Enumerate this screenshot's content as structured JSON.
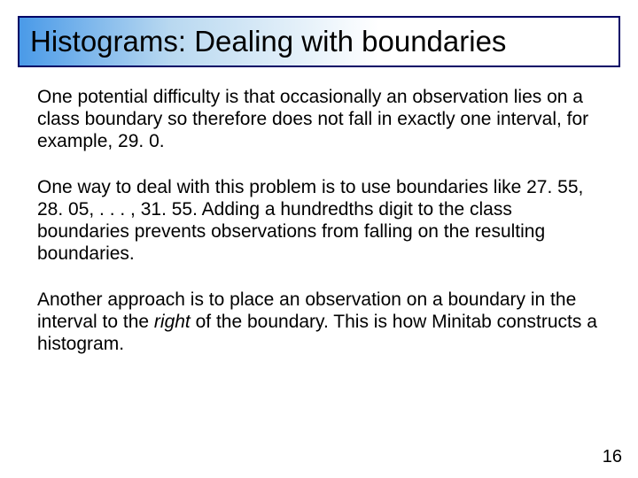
{
  "slide": {
    "title": "Histograms: Dealing with boundaries",
    "paragraphs": [
      {
        "text": "One potential difficulty is that occasionally an observation lies on a class boundary so therefore does not fall in exactly one interval, for example, 29. 0."
      },
      {
        "text": "One way to deal with this problem is to use boundaries like 27. 55, 28. 05, . . . , 31. 55. Adding a hundredths digit to the class boundaries prevents observations from falling on the resulting boundaries."
      },
      {
        "pre": "Another approach is to place an observation on a boundary in the interval to the ",
        "italic": "right",
        "post": " of the boundary. This is how Minitab constructs a histogram."
      }
    ],
    "page_number": "16"
  },
  "style": {
    "title_border_color": "#000066",
    "title_gradient_start": "#4a9ae8",
    "title_gradient_mid": "#b8d8f0",
    "title_gradient_end": "#ffffff",
    "title_fontsize": 33,
    "body_fontsize": 21,
    "pagenum_fontsize": 20,
    "text_color": "#000000",
    "background_color": "#ffffff"
  }
}
